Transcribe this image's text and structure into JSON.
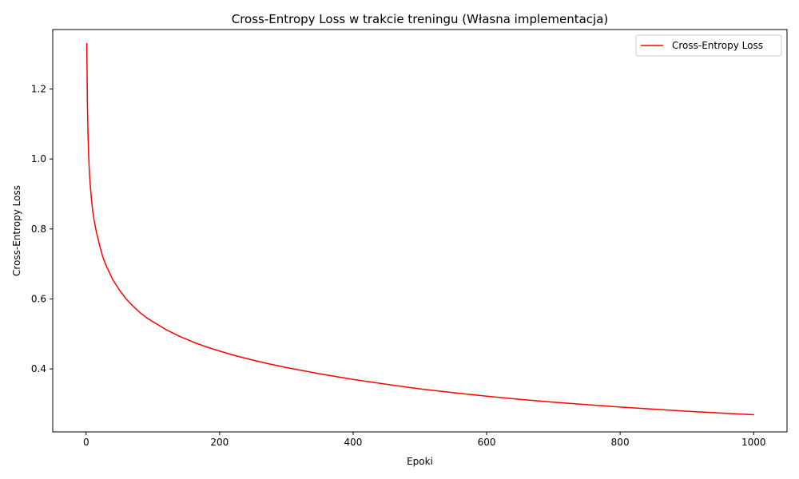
{
  "chart_data": {
    "type": "line",
    "title": "Cross-Entropy Loss w trakcie treningu (Własna implementacja)",
    "xlabel": "Epoki",
    "ylabel": "Cross-Entropy Loss",
    "xlim": [
      -50,
      1050
    ],
    "ylim": [
      0.22,
      1.37
    ],
    "x_ticks": [
      0,
      200,
      400,
      600,
      800,
      1000
    ],
    "x_tick_labels": [
      "0",
      "200",
      "400",
      "600",
      "800",
      "1000"
    ],
    "y_ticks": [
      0.4,
      0.6,
      0.8,
      1.0,
      1.2
    ],
    "y_tick_labels": [
      "0.4",
      "0.6",
      "0.8",
      "1.0",
      "1.2"
    ],
    "grid": false,
    "legend": {
      "position": "top-right",
      "entries": [
        {
          "label": "Cross-Entropy Loss",
          "color": "#ff0000"
        }
      ]
    },
    "series": [
      {
        "name": "Cross-Entropy Loss",
        "color": "#ff0000",
        "x": [
          1,
          2,
          3,
          4,
          5,
          6,
          8,
          10,
          12,
          15,
          20,
          25,
          30,
          40,
          50,
          60,
          70,
          80,
          90,
          100,
          120,
          140,
          160,
          180,
          200,
          225,
          250,
          275,
          300,
          350,
          400,
          450,
          500,
          550,
          600,
          650,
          700,
          750,
          800,
          850,
          900,
          950,
          1000
        ],
        "y": [
          1.33,
          1.15,
          1.06,
          1.0,
          0.96,
          0.93,
          0.885,
          0.85,
          0.825,
          0.795,
          0.755,
          0.72,
          0.695,
          0.655,
          0.625,
          0.6,
          0.58,
          0.562,
          0.547,
          0.535,
          0.512,
          0.493,
          0.477,
          0.463,
          0.451,
          0.437,
          0.425,
          0.414,
          0.404,
          0.386,
          0.37,
          0.356,
          0.343,
          0.332,
          0.322,
          0.313,
          0.305,
          0.298,
          0.291,
          0.285,
          0.279,
          0.274,
          0.269
        ]
      }
    ]
  }
}
